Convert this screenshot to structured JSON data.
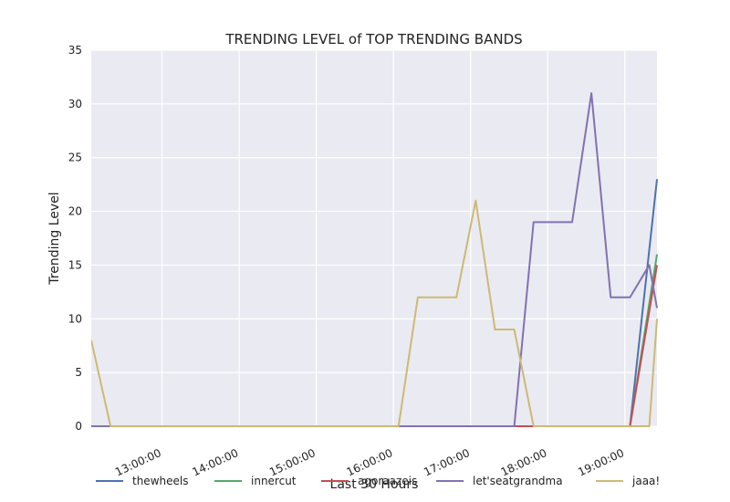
{
  "chart_data": {
    "type": "line",
    "title": "TRENDING LEVEL of TOP TRENDING BANDS",
    "xlabel": "Last 30 Hours",
    "ylabel": "Trending Level",
    "xlim": [
      "12:05",
      "19:25"
    ],
    "ylim": [
      0,
      35
    ],
    "x_ticks": [
      "13:00:00",
      "14:00:00",
      "15:00:00",
      "16:00:00",
      "17:00:00",
      "18:00:00",
      "19:00:00"
    ],
    "y_ticks": [
      0,
      5,
      10,
      15,
      20,
      25,
      30,
      35
    ],
    "grid": true,
    "legend_position": "bottom",
    "series": [
      {
        "name": "thewheels",
        "color": "#4c72b0",
        "points": [
          [
            "12:05",
            0
          ],
          [
            "19:04",
            0
          ],
          [
            "19:25",
            23
          ]
        ]
      },
      {
        "name": "innercut",
        "color": "#55a868",
        "points": [
          [
            "12:05",
            0
          ],
          [
            "19:04",
            0
          ],
          [
            "19:25",
            16
          ]
        ]
      },
      {
        "name": "agoraazeis",
        "color": "#c44e52",
        "points": [
          [
            "12:05",
            0
          ],
          [
            "19:04",
            0
          ],
          [
            "19:25",
            15
          ]
        ]
      },
      {
        "name": "let'seatgrandma",
        "color": "#8172b2",
        "points": [
          [
            "12:05",
            0
          ],
          [
            "17:34",
            0
          ],
          [
            "17:49",
            19
          ],
          [
            "18:04",
            19
          ],
          [
            "18:19",
            19
          ],
          [
            "18:34",
            31
          ],
          [
            "18:49",
            12
          ],
          [
            "19:04",
            12
          ],
          [
            "19:04",
            12
          ],
          [
            "19:19",
            15
          ],
          [
            "19:25",
            11
          ]
        ]
      },
      {
        "name": "jaaa!",
        "color": "#ccb974",
        "points": [
          [
            "12:05",
            8
          ],
          [
            "12:20",
            0
          ],
          [
            "16:04",
            0
          ],
          [
            "16:19",
            12
          ],
          [
            "16:34",
            12
          ],
          [
            "16:49",
            12
          ],
          [
            "17:04",
            21
          ],
          [
            "17:19",
            9
          ],
          [
            "17:34",
            9
          ],
          [
            "17:49",
            0
          ],
          [
            "19:19",
            0
          ],
          [
            "19:25",
            10
          ]
        ]
      }
    ]
  }
}
